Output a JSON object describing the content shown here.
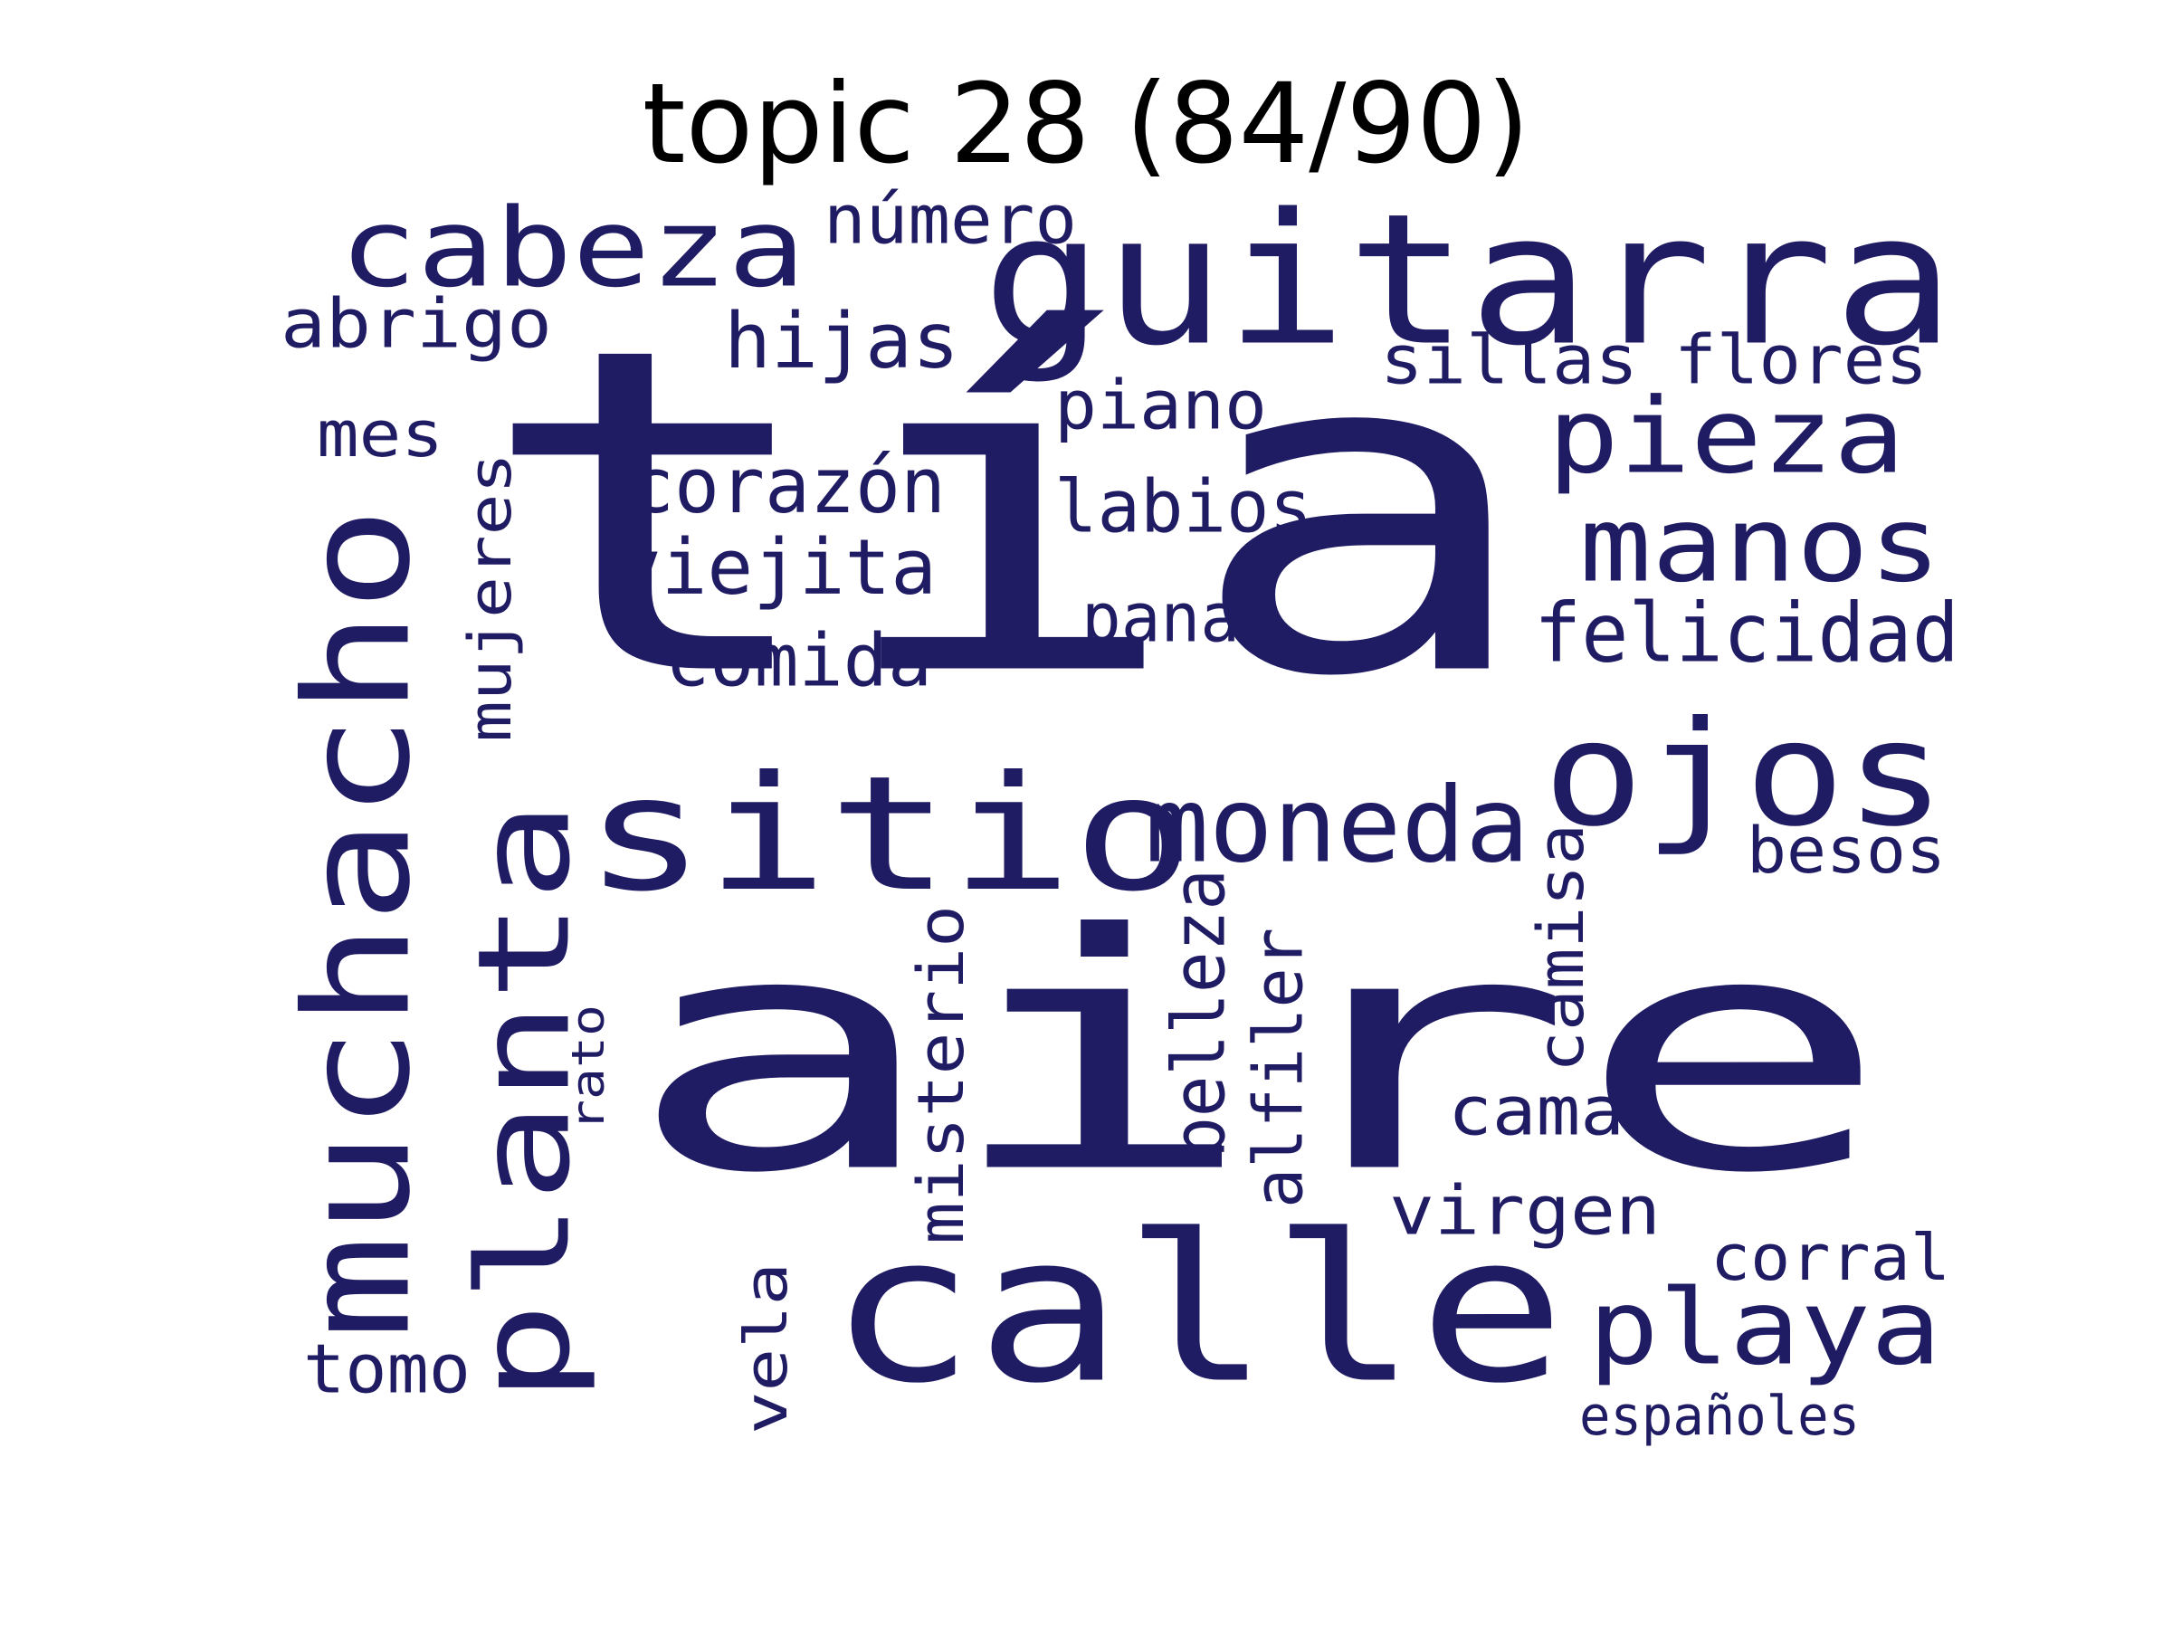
{
  "title": "topic 28 (84/90)",
  "color": "#201c64",
  "words": [
    {
      "text": "tía"
    },
    {
      "text": "aire"
    },
    {
      "text": "guitarra"
    },
    {
      "text": "calle"
    },
    {
      "text": "sitio"
    },
    {
      "text": "muchacho"
    },
    {
      "text": "planta"
    },
    {
      "text": "cabeza"
    },
    {
      "text": "moneda"
    },
    {
      "text": "ojos"
    },
    {
      "text": "pieza"
    },
    {
      "text": "manos"
    },
    {
      "text": "playa"
    },
    {
      "text": "felicidad"
    },
    {
      "text": "corazón"
    },
    {
      "text": "viejita"
    },
    {
      "text": "comida"
    },
    {
      "text": "hijas"
    },
    {
      "text": "abrigo"
    },
    {
      "text": "número"
    },
    {
      "text": "sillas"
    },
    {
      "text": "flores"
    },
    {
      "text": "piano"
    },
    {
      "text": "labios"
    },
    {
      "text": "pana"
    },
    {
      "text": "mes"
    },
    {
      "text": "mujeres"
    },
    {
      "text": "besos"
    },
    {
      "text": "cama"
    },
    {
      "text": "virgen"
    },
    {
      "text": "corral"
    },
    {
      "text": "camisa"
    },
    {
      "text": "belleza"
    },
    {
      "text": "alfiler"
    },
    {
      "text": "misterio"
    },
    {
      "text": "rato"
    },
    {
      "text": "vela"
    },
    {
      "text": "tomo"
    },
    {
      "text": "españoles"
    }
  ]
}
